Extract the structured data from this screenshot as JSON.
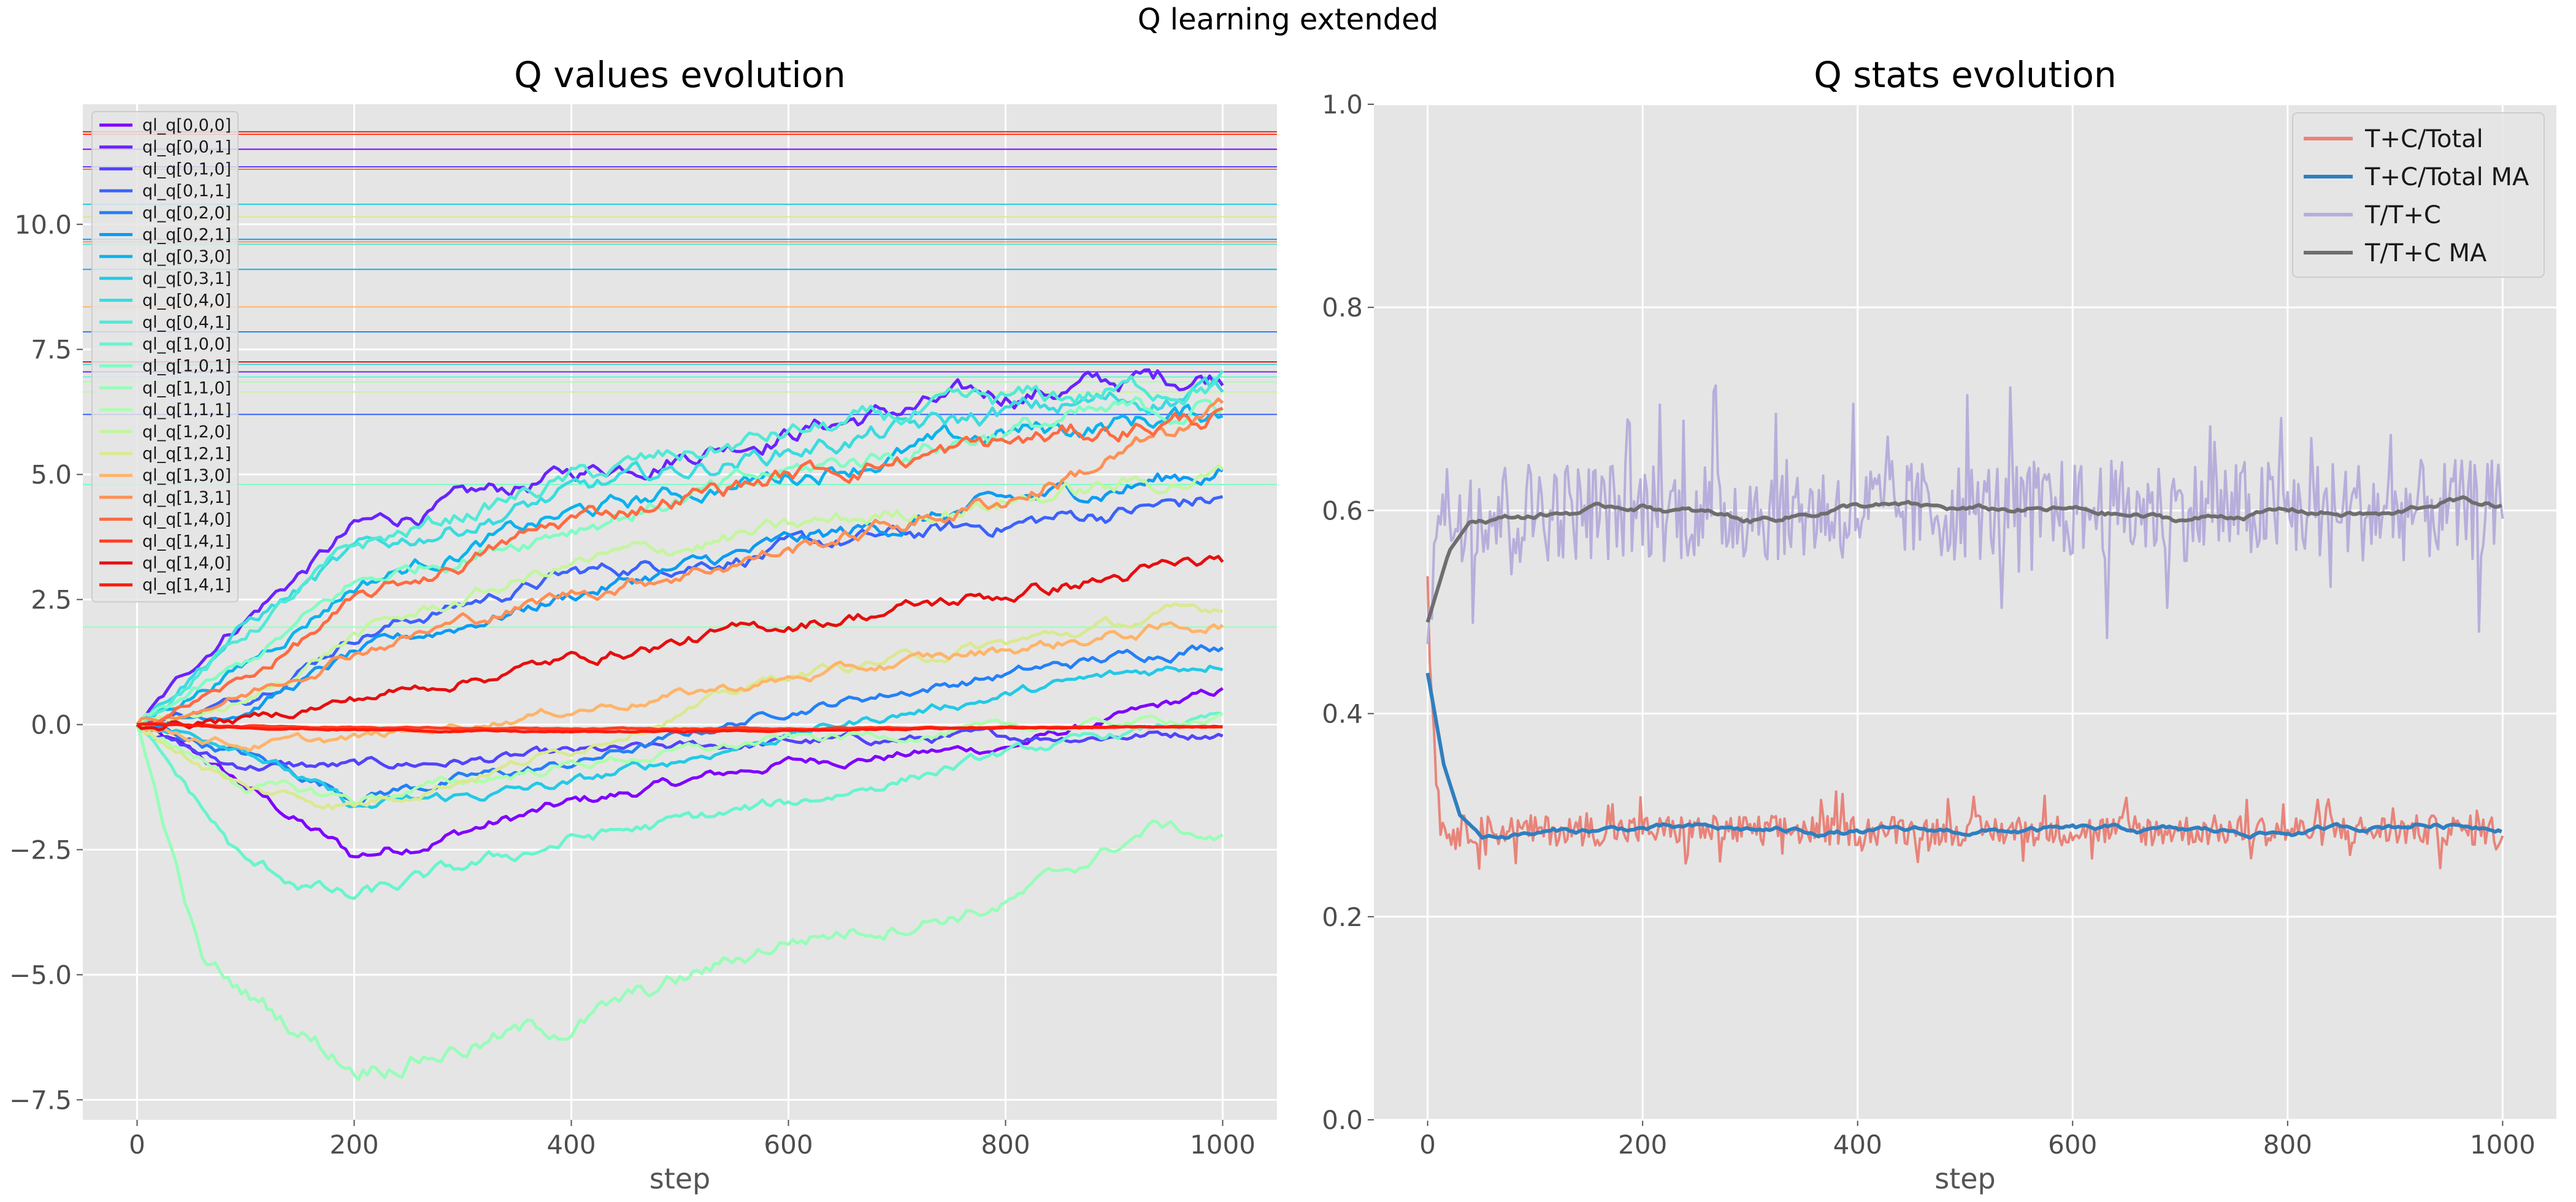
{
  "figure": {
    "suptitle": "Q learning extended"
  },
  "chart_data": [
    {
      "type": "line",
      "title": "Q values evolution",
      "xlabel": "step",
      "ylabel": "",
      "xlim": [
        -50,
        1050
      ],
      "ylim": [
        -7.9,
        12.4
      ],
      "xticks": [
        0,
        200,
        400,
        600,
        800,
        1000
      ],
      "xtick_labels": [
        "0",
        "200",
        "400",
        "600",
        "800",
        "1000"
      ],
      "yticks": [
        -7.5,
        -5.0,
        -2.5,
        0.0,
        2.5,
        5.0,
        7.5,
        10.0
      ],
      "ytick_labels": [
        "−7.5",
        "−5.0",
        "−2.5",
        "0.0",
        "2.5",
        "5.0",
        "7.5",
        "10.0"
      ],
      "grid": true,
      "legend_position": "top-left",
      "series": [
        {
          "name": "ql_q[0,0,0]",
          "color": "#8000ff",
          "end": 0.65,
          "ref": 11.5,
          "points": [
            [
              0,
              0
            ],
            [
              60,
              -0.7
            ],
            [
              200,
              -2.65
            ],
            [
              400,
              -1.6
            ],
            [
              600,
              -0.75
            ],
            [
              800,
              -0.45
            ],
            [
              1000,
              0.65
            ]
          ]
        },
        {
          "name": "ql_q[0,0,1]",
          "color": "#6a23fe",
          "end": 7.05,
          "ref": 7.05,
          "points": [
            [
              0,
              0
            ],
            [
              80,
              1.8
            ],
            [
              200,
              3.9
            ],
            [
              400,
              5.0
            ],
            [
              600,
              5.9
            ],
            [
              800,
              6.6
            ],
            [
              1000,
              7.05
            ]
          ]
        },
        {
          "name": "ql_q[0,1,0]",
          "color": "#5343fd",
          "end": -0.15,
          "ref": 11.15,
          "points": [
            [
              0,
              0
            ],
            [
              80,
              -0.8
            ],
            [
              200,
              -0.85
            ],
            [
              400,
              -0.6
            ],
            [
              600,
              -0.35
            ],
            [
              800,
              -0.25
            ],
            [
              1000,
              -0.15
            ]
          ]
        },
        {
          "name": "ql_q[0,1,1]",
          "color": "#3c62fb",
          "end": 4.5,
          "ref": 6.2,
          "points": [
            [
              0,
              0
            ],
            [
              100,
              0.5
            ],
            [
              200,
              1.8
            ],
            [
              400,
              3.0
            ],
            [
              600,
              3.5
            ],
            [
              800,
              4.0
            ],
            [
              1000,
              4.5
            ]
          ]
        },
        {
          "name": "ql_q[0,2,0]",
          "color": "#2480f7",
          "end": 1.65,
          "ref": 7.85,
          "points": [
            [
              0,
              0
            ],
            [
              100,
              -0.6
            ],
            [
              200,
              -1.4
            ],
            [
              400,
              -0.8
            ],
            [
              600,
              0.3
            ],
            [
              800,
              1.0
            ],
            [
              1000,
              1.65
            ]
          ]
        },
        {
          "name": "ql_q[0,2,1]",
          "color": "#0d9bf2",
          "end": 5.1,
          "ref": 9.7,
          "points": [
            [
              0,
              0
            ],
            [
              100,
              0.3
            ],
            [
              200,
              1.4
            ],
            [
              400,
              2.6
            ],
            [
              600,
              3.6
            ],
            [
              800,
              4.4
            ],
            [
              1000,
              5.1
            ]
          ]
        },
        {
          "name": "ql_q[0,3,0]",
          "color": "#0bb3ed",
          "end": 6.25,
          "ref": 9.1,
          "points": [
            [
              0,
              0
            ],
            [
              100,
              1.2
            ],
            [
              200,
              2.8
            ],
            [
              400,
              4.2
            ],
            [
              600,
              5.0
            ],
            [
              800,
              5.8
            ],
            [
              1000,
              6.25
            ]
          ]
        },
        {
          "name": "ql_q[0,3,1]",
          "color": "#23c9e6",
          "end": 1.3,
          "ref": 10.4,
          "points": [
            [
              0,
              0
            ],
            [
              100,
              -0.4
            ],
            [
              200,
              -1.7
            ],
            [
              400,
              -1.2
            ],
            [
              600,
              -0.2
            ],
            [
              800,
              0.6
            ],
            [
              1000,
              1.3
            ]
          ]
        },
        {
          "name": "ql_q[0,4,0]",
          "color": "#3adbdf",
          "end": 6.7,
          "ref": 7.2,
          "points": [
            [
              0,
              0
            ],
            [
              100,
              2.0
            ],
            [
              200,
              3.4
            ],
            [
              400,
              4.6
            ],
            [
              600,
              5.5
            ],
            [
              800,
              6.2
            ],
            [
              1000,
              6.7
            ]
          ]
        },
        {
          "name": "ql_q[0,4,1]",
          "color": "#51e9d6",
          "end": 6.9,
          "ref": 9.6,
          "points": [
            [
              0,
              0
            ],
            [
              100,
              1.8
            ],
            [
              200,
              3.5
            ],
            [
              400,
              4.9
            ],
            [
              600,
              5.8
            ],
            [
              800,
              6.4
            ],
            [
              1000,
              6.9
            ]
          ]
        },
        {
          "name": "ql_q[1,0,0]",
          "color": "#68f4ce",
          "end": 0.15,
          "ref": 6.95,
          "points": [
            [
              0,
              0
            ],
            [
              100,
              -2.8
            ],
            [
              200,
              -3.5
            ],
            [
              400,
              -2.3
            ],
            [
              600,
              -1.6
            ],
            [
              800,
              -0.6
            ],
            [
              1000,
              0.15
            ]
          ]
        },
        {
          "name": "ql_q[1,0,1]",
          "color": "#80fbc4",
          "end": 6.4,
          "ref": 4.8,
          "points": [
            [
              0,
              0
            ],
            [
              100,
              1.2
            ],
            [
              200,
              2.8
            ],
            [
              400,
              4.0
            ],
            [
              600,
              5.0
            ],
            [
              800,
              5.9
            ],
            [
              1000,
              6.4
            ]
          ]
        },
        {
          "name": "ql_q[1,1,0]",
          "color": "#97fdb9",
          "end": -2.3,
          "ref": 1.95,
          "points": [
            [
              0,
              0
            ],
            [
              60,
              -4.8
            ],
            [
              200,
              -6.8
            ],
            [
              400,
              -6.0
            ],
            [
              600,
              -4.3
            ],
            [
              800,
              -3.6
            ],
            [
              940,
              -2.0
            ],
            [
              1000,
              -2.3
            ]
          ]
        },
        {
          "name": "ql_q[1,1,1]",
          "color": "#adfdad",
          "end": 0.15,
          "ref": 6.85,
          "points": [
            [
              0,
              0
            ],
            [
              100,
              -1.2
            ],
            [
              200,
              -1.5
            ],
            [
              400,
              -0.8
            ],
            [
              600,
              -0.3
            ],
            [
              800,
              -0.1
            ],
            [
              1000,
              0.15
            ]
          ]
        },
        {
          "name": "ql_q[1,2,0]",
          "color": "#c4f59f",
          "end": 5.0,
          "ref": 6.65,
          "points": [
            [
              0,
              0
            ],
            [
              100,
              0.4
            ],
            [
              200,
              1.8
            ],
            [
              400,
              3.2
            ],
            [
              600,
              3.9
            ],
            [
              800,
              4.5
            ],
            [
              1000,
              5.0
            ]
          ]
        },
        {
          "name": "ql_q[1,2,1]",
          "color": "#d9e991",
          "end": 2.35,
          "ref": 10.15,
          "points": [
            [
              0,
              0
            ],
            [
              100,
              -1.3
            ],
            [
              200,
              -1.6
            ],
            [
              400,
              -0.5
            ],
            [
              600,
              1.0
            ],
            [
              800,
              1.6
            ],
            [
              1000,
              2.35
            ]
          ]
        },
        {
          "name": "ql_q[1,3,0]",
          "color": "#ffb469",
          "end": 2.05,
          "ref": 8.35,
          "points": [
            [
              0,
              0
            ],
            [
              100,
              -0.4
            ],
            [
              200,
              -0.3
            ],
            [
              400,
              0.3
            ],
            [
              600,
              0.9
            ],
            [
              800,
              1.5
            ],
            [
              1000,
              2.05
            ]
          ]
        },
        {
          "name": "ql_q[1,3,1]",
          "color": "#ff8f55",
          "end": 6.15,
          "ref": 9.65,
          "points": [
            [
              0,
              0
            ],
            [
              100,
              0.6
            ],
            [
              200,
              1.5
            ],
            [
              400,
              2.6
            ],
            [
              600,
              3.5
            ],
            [
              800,
              4.5
            ],
            [
              1000,
              6.15
            ]
          ]
        },
        {
          "name": "ql_q[1,4,0]",
          "color": "#ff6a40",
          "end": 6.2,
          "ref": 11.1,
          "points": [
            [
              0,
              0
            ],
            [
              100,
              0.9
            ],
            [
              200,
              2.4
            ],
            [
              400,
              4.1
            ],
            [
              600,
              5.0
            ],
            [
              800,
              5.6
            ],
            [
              1000,
              6.2
            ]
          ]
        },
        {
          "name": "ql_q[1,4,1]",
          "color": "#ff3d22",
          "end": 0.0,
          "ref": 11.8,
          "points": [
            [
              0,
              0
            ],
            [
              200,
              -0.05
            ],
            [
              400,
              -0.1
            ],
            [
              600,
              -0.08
            ],
            [
              800,
              -0.05
            ],
            [
              1000,
              -0.05
            ]
          ]
        },
        {
          "name": "ql_q[1,4,0]",
          "color": "#e60f0f",
          "end": 3.25,
          "ref": 7.25,
          "points": [
            [
              0,
              0
            ],
            [
              100,
              0.1
            ],
            [
              200,
              0.5
            ],
            [
              400,
              1.3
            ],
            [
              600,
              2.0
            ],
            [
              800,
              2.6
            ],
            [
              1000,
              3.25
            ]
          ]
        },
        {
          "name": "ql_q[1,4,1]",
          "color": "#ff1a0d",
          "end": 0.0,
          "ref": 11.85,
          "points": [
            [
              0,
              0
            ],
            [
              200,
              -0.1
            ],
            [
              400,
              -0.15
            ],
            [
              600,
              -0.12
            ],
            [
              800,
              -0.06
            ],
            [
              1000,
              -0.03
            ]
          ]
        }
      ]
    },
    {
      "type": "line",
      "title": "Q stats evolution",
      "xlabel": "step",
      "ylabel": "",
      "xlim": [
        -50,
        1050
      ],
      "ylim": [
        0.0,
        1.0
      ],
      "xticks": [
        0,
        200,
        400,
        600,
        800,
        1000
      ],
      "xtick_labels": [
        "0",
        "200",
        "400",
        "600",
        "800",
        "1000"
      ],
      "yticks": [
        0.0,
        0.2,
        0.4,
        0.6,
        0.8,
        1.0
      ],
      "ytick_labels": [
        "0.0",
        "0.2",
        "0.4",
        "0.6",
        "0.8",
        "1.0"
      ],
      "grid": true,
      "legend_position": "top-right",
      "series": [
        {
          "name": "T+C/Total",
          "color": "#e8847a",
          "style": "noisy",
          "level": 0.285,
          "noise": 0.015,
          "start": 0.52
        },
        {
          "name": "T+C/Total MA",
          "color": "#2f7fbf",
          "style": "smooth",
          "level": 0.285,
          "start": 0.44,
          "points": [
            [
              0,
              0.44
            ],
            [
              15,
              0.35
            ],
            [
              30,
              0.3
            ],
            [
              50,
              0.28
            ],
            [
              200,
              0.287
            ],
            [
              400,
              0.283
            ],
            [
              600,
              0.285
            ],
            [
              800,
              0.283
            ],
            [
              920,
              0.292
            ],
            [
              1000,
              0.29
            ]
          ]
        },
        {
          "name": "T/T+C",
          "color": "#b8aedb",
          "style": "noisy",
          "level": 0.6,
          "noise": 0.05,
          "start": 0.48
        },
        {
          "name": "T/T+C MA",
          "color": "#6e6e6e",
          "style": "smooth",
          "level": 0.6,
          "start": 0.49,
          "points": [
            [
              0,
              0.49
            ],
            [
              20,
              0.56
            ],
            [
              40,
              0.59
            ],
            [
              100,
              0.595
            ],
            [
              200,
              0.605
            ],
            [
              300,
              0.59
            ],
            [
              400,
              0.605
            ],
            [
              500,
              0.6
            ],
            [
              600,
              0.6
            ],
            [
              700,
              0.59
            ],
            [
              800,
              0.6
            ],
            [
              900,
              0.595
            ],
            [
              950,
              0.61
            ],
            [
              1000,
              0.605
            ]
          ]
        }
      ]
    }
  ]
}
